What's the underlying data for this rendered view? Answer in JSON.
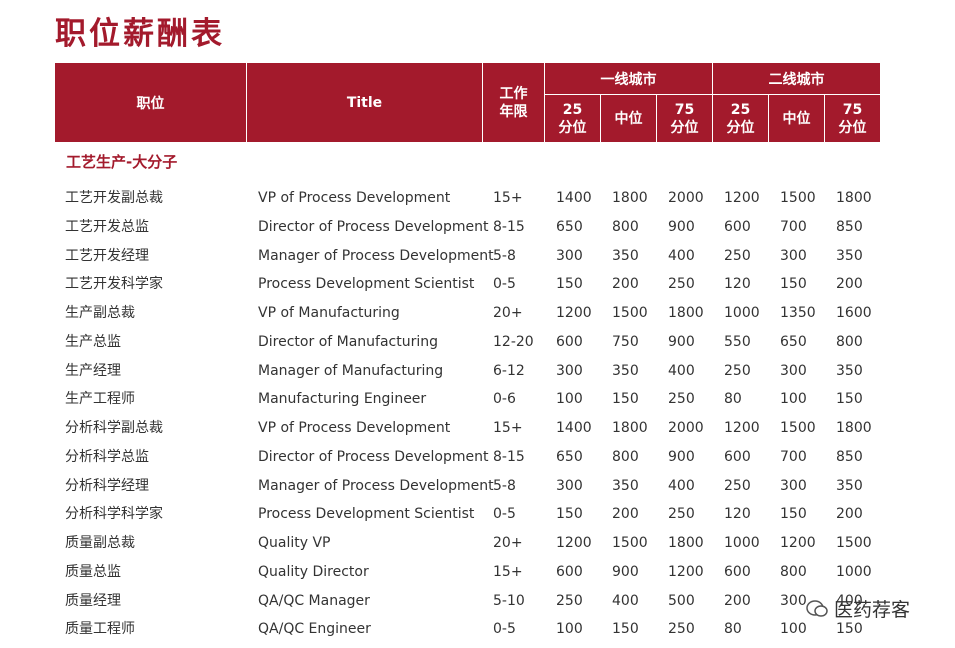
{
  "header": {
    "title": "职位薪酬表"
  },
  "table": {
    "columns": [
      "职位",
      "Title",
      "工作年限"
    ],
    "groups": [
      {
        "name": "一线城市",
        "sub": [
          "25分位",
          "中位",
          "75分位"
        ]
      },
      {
        "name": "二线城市",
        "sub": [
          "25分位",
          "中位",
          "75分位"
        ]
      }
    ],
    "section": "工艺生产-大分子",
    "rows": [
      [
        "工艺开发副总裁",
        "VP of Process Development",
        "15+",
        1400,
        1800,
        2000,
        1200,
        1500,
        1800
      ],
      [
        "工艺开发总监",
        "Director of Process Development",
        "8-15",
        650,
        800,
        900,
        600,
        700,
        850
      ],
      [
        "工艺开发经理",
        "Manager of Process Development",
        "5-8",
        300,
        350,
        400,
        250,
        300,
        350
      ],
      [
        "工艺开发科学家",
        "Process Development Scientist",
        "0-5",
        150,
        200,
        250,
        120,
        150,
        200
      ],
      [
        "生产副总裁",
        "VP of Manufacturing",
        "20+",
        1200,
        1500,
        1800,
        1000,
        1350,
        1600
      ],
      [
        "生产总监",
        "Director of Manufacturing",
        "12-20",
        600,
        750,
        900,
        550,
        650,
        800
      ],
      [
        "生产经理",
        "Manager of Manufacturing",
        "6-12",
        300,
        350,
        400,
        250,
        300,
        350
      ],
      [
        "生产工程师",
        "Manufacturing Engineer",
        "0-6",
        100,
        150,
        250,
        80,
        100,
        150
      ],
      [
        "分析科学副总裁",
        "VP of Process Development",
        "15+",
        1400,
        1800,
        2000,
        1200,
        1500,
        1800
      ],
      [
        "分析科学总监",
        "Director of Process Development",
        "8-15",
        650,
        800,
        900,
        600,
        700,
        850
      ],
      [
        "分析科学经理",
        "Manager of Process Development",
        "5-8",
        300,
        350,
        400,
        250,
        300,
        350
      ],
      [
        "分析科学科学家",
        "Process Development Scientist",
        "0-5",
        150,
        200,
        250,
        120,
        150,
        200
      ],
      [
        "质量副总裁",
        "Quality VP",
        "20+",
        1200,
        1500,
        1800,
        1000,
        1200,
        1500
      ],
      [
        "质量总监",
        "Quality Director",
        "15+",
        600,
        900,
        1200,
        600,
        800,
        1000
      ],
      [
        "质量经理",
        "QA/QC Manager",
        "5-10",
        250,
        400,
        500,
        200,
        300,
        400
      ],
      [
        "质量工程师",
        "QA/QC Engineer",
        "0-5",
        100,
        150,
        250,
        80,
        100,
        150
      ]
    ]
  },
  "badge": {
    "text": "医药荐客"
  }
}
